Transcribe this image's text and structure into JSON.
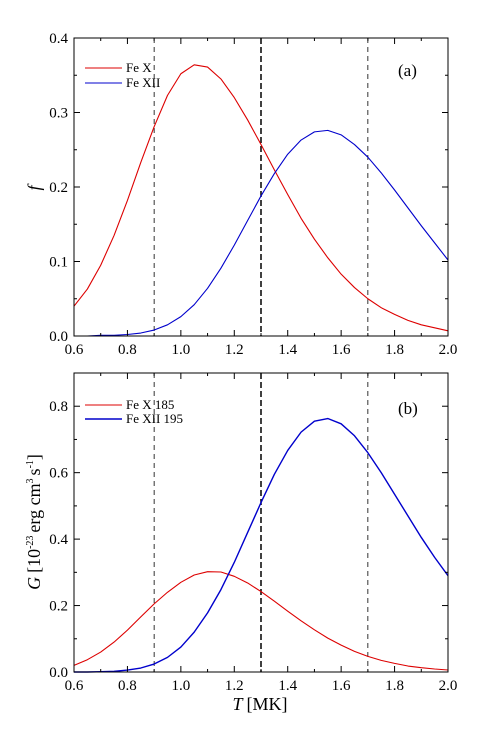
{
  "chart_data": [
    {
      "type": "line",
      "panel_label": "(a)",
      "xlabel": "",
      "ylabel": "f",
      "xlim": [
        0.6,
        2.0
      ],
      "ylim": [
        0.0,
        0.4
      ],
      "xticks": [
        "0.6",
        "0.8",
        "1.0",
        "1.2",
        "1.4",
        "1.6",
        "1.8",
        "2.0"
      ],
      "yticks": [
        "0.0",
        "0.1",
        "0.2",
        "0.3",
        "0.4"
      ],
      "legend_position": "top-left",
      "vertical_lines": [
        {
          "x": 0.9,
          "style": "thin-dashed"
        },
        {
          "x": 1.3,
          "style": "thick-dashed"
        },
        {
          "x": 1.7,
          "style": "thin-dashed"
        }
      ],
      "series": [
        {
          "name": "Fe X",
          "color": "#dd0000",
          "x": [
            0.6,
            0.65,
            0.7,
            0.75,
            0.8,
            0.85,
            0.9,
            0.95,
            1.0,
            1.05,
            1.1,
            1.15,
            1.2,
            1.25,
            1.3,
            1.35,
            1.4,
            1.45,
            1.5,
            1.55,
            1.6,
            1.65,
            1.7,
            1.75,
            1.8,
            1.85,
            1.9,
            1.95,
            2.0
          ],
          "y": [
            0.04,
            0.063,
            0.095,
            0.135,
            0.182,
            0.233,
            0.281,
            0.323,
            0.352,
            0.364,
            0.361,
            0.345,
            0.32,
            0.29,
            0.257,
            0.223,
            0.19,
            0.158,
            0.13,
            0.105,
            0.083,
            0.065,
            0.05,
            0.038,
            0.029,
            0.021,
            0.015,
            0.011,
            0.007
          ]
        },
        {
          "name": "Fe XII",
          "color": "#0000cc",
          "x": [
            0.6,
            0.65,
            0.7,
            0.75,
            0.8,
            0.85,
            0.9,
            0.95,
            1.0,
            1.05,
            1.1,
            1.15,
            1.2,
            1.25,
            1.3,
            1.35,
            1.4,
            1.45,
            1.5,
            1.55,
            1.6,
            1.65,
            1.7,
            1.75,
            1.8,
            1.85,
            1.9,
            1.95,
            2.0
          ],
          "y": [
            0.0,
            0.0,
            0.001,
            0.001,
            0.002,
            0.004,
            0.008,
            0.015,
            0.026,
            0.042,
            0.064,
            0.091,
            0.122,
            0.155,
            0.188,
            0.218,
            0.244,
            0.263,
            0.274,
            0.276,
            0.27,
            0.257,
            0.24,
            0.219,
            0.196,
            0.172,
            0.148,
            0.125,
            0.102
          ]
        }
      ]
    },
    {
      "type": "line",
      "panel_label": "(b)",
      "xlabel_italic": "T",
      "xlabel_unit": "[MK]",
      "ylabel_italic": "G",
      "ylabel_unit": "[10",
      "ylabel_exp": "-23",
      "ylabel_unit2": "erg cm",
      "ylabel_exp2": "3",
      "ylabel_unit3": "s",
      "ylabel_exp3": "-1",
      "ylabel_close": "]",
      "xlim": [
        0.6,
        2.0
      ],
      "ylim": [
        0.0,
        0.9
      ],
      "xticks": [
        "0.6",
        "0.8",
        "1.0",
        "1.2",
        "1.4",
        "1.6",
        "1.8",
        "2.0"
      ],
      "yticks": [
        "0.0",
        "0.2",
        "0.4",
        "0.6",
        "0.8"
      ],
      "legend_position": "top-left",
      "vertical_lines": [
        {
          "x": 0.9,
          "style": "thin-dashed"
        },
        {
          "x": 1.3,
          "style": "thick-dashed"
        },
        {
          "x": 1.7,
          "style": "thin-dashed"
        }
      ],
      "series": [
        {
          "name": "Fe X 185",
          "color": "#dd0000",
          "x": [
            0.6,
            0.65,
            0.7,
            0.75,
            0.8,
            0.85,
            0.9,
            0.95,
            1.0,
            1.05,
            1.1,
            1.15,
            1.2,
            1.25,
            1.3,
            1.35,
            1.4,
            1.45,
            1.5,
            1.55,
            1.6,
            1.65,
            1.7,
            1.75,
            1.8,
            1.85,
            1.9,
            1.95,
            2.0
          ],
          "y": [
            0.02,
            0.037,
            0.06,
            0.09,
            0.126,
            0.166,
            0.205,
            0.24,
            0.27,
            0.292,
            0.302,
            0.301,
            0.288,
            0.268,
            0.242,
            0.213,
            0.183,
            0.154,
            0.127,
            0.102,
            0.081,
            0.062,
            0.047,
            0.035,
            0.026,
            0.018,
            0.013,
            0.009,
            0.006
          ]
        },
        {
          "name": "Fe XII 195",
          "color": "#0000cc",
          "x": [
            0.6,
            0.65,
            0.7,
            0.75,
            0.8,
            0.85,
            0.9,
            0.95,
            1.0,
            1.05,
            1.1,
            1.15,
            1.2,
            1.25,
            1.3,
            1.35,
            1.4,
            1.45,
            1.5,
            1.55,
            1.6,
            1.65,
            1.7,
            1.75,
            1.8,
            1.85,
            1.9,
            1.95,
            2.0
          ],
          "y": [
            0.0,
            0.0,
            0.001,
            0.002,
            0.006,
            0.012,
            0.024,
            0.044,
            0.075,
            0.12,
            0.178,
            0.248,
            0.33,
            0.42,
            0.51,
            0.595,
            0.667,
            0.722,
            0.755,
            0.763,
            0.747,
            0.711,
            0.66,
            0.6,
            0.535,
            0.47,
            0.405,
            0.345,
            0.29
          ]
        }
      ]
    }
  ]
}
